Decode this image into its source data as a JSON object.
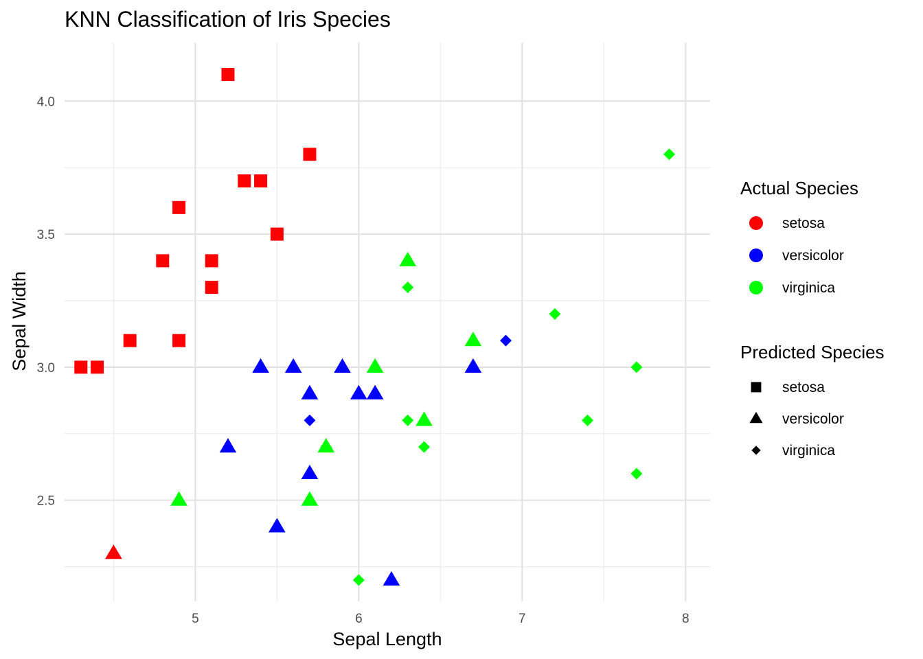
{
  "chart_data": {
    "type": "scatter",
    "title": "KNN Classification of Iris Species",
    "xlabel": "Sepal Length",
    "ylabel": "Sepal Width",
    "xlim": [
      4.2,
      8.15
    ],
    "ylim": [
      2.12,
      4.22
    ],
    "x_ticks": [
      5,
      6,
      7,
      8
    ],
    "x_minor": [
      4.5,
      5.5,
      6.5,
      7.5
    ],
    "y_ticks": [
      2.5,
      3.0,
      3.5,
      4.0
    ],
    "y_tick_labels": [
      "2.5",
      "3.0",
      "3.5",
      "4.0"
    ],
    "y_minor": [
      2.25,
      2.75,
      3.25,
      3.75
    ],
    "grid": true,
    "legend_position": "right",
    "colors": {
      "setosa": "#ff0000",
      "versicolor": "#0000ff",
      "virginica": "#00ff00"
    },
    "shapes": {
      "setosa": "square",
      "versicolor": "triangle",
      "virginica": "diamond"
    },
    "legend": {
      "actual_title": "Actual Species",
      "predicted_title": "Predicted Species",
      "actual_items": [
        "setosa",
        "versicolor",
        "virginica"
      ],
      "predicted_items": [
        "setosa",
        "versicolor",
        "virginica"
      ]
    },
    "points": [
      {
        "x": 5.2,
        "y": 4.1,
        "actual": "setosa",
        "predicted": "setosa"
      },
      {
        "x": 5.7,
        "y": 3.8,
        "actual": "setosa",
        "predicted": "setosa"
      },
      {
        "x": 5.3,
        "y": 3.7,
        "actual": "setosa",
        "predicted": "setosa"
      },
      {
        "x": 5.4,
        "y": 3.7,
        "actual": "setosa",
        "predicted": "setosa"
      },
      {
        "x": 4.9,
        "y": 3.6,
        "actual": "setosa",
        "predicted": "setosa"
      },
      {
        "x": 5.5,
        "y": 3.5,
        "actual": "setosa",
        "predicted": "setosa"
      },
      {
        "x": 4.8,
        "y": 3.4,
        "actual": "setosa",
        "predicted": "setosa"
      },
      {
        "x": 5.1,
        "y": 3.4,
        "actual": "setosa",
        "predicted": "setosa"
      },
      {
        "x": 5.1,
        "y": 3.3,
        "actual": "setosa",
        "predicted": "setosa"
      },
      {
        "x": 4.6,
        "y": 3.1,
        "actual": "setosa",
        "predicted": "setosa"
      },
      {
        "x": 4.9,
        "y": 3.1,
        "actual": "setosa",
        "predicted": "setosa"
      },
      {
        "x": 4.3,
        "y": 3.0,
        "actual": "setosa",
        "predicted": "setosa"
      },
      {
        "x": 4.4,
        "y": 3.0,
        "actual": "setosa",
        "predicted": "setosa"
      },
      {
        "x": 4.5,
        "y": 2.3,
        "actual": "setosa",
        "predicted": "versicolor"
      },
      {
        "x": 5.4,
        "y": 3.0,
        "actual": "versicolor",
        "predicted": "versicolor"
      },
      {
        "x": 5.6,
        "y": 3.0,
        "actual": "versicolor",
        "predicted": "versicolor"
      },
      {
        "x": 5.9,
        "y": 3.0,
        "actual": "versicolor",
        "predicted": "versicolor"
      },
      {
        "x": 6.7,
        "y": 3.0,
        "actual": "versicolor",
        "predicted": "versicolor"
      },
      {
        "x": 5.7,
        "y": 2.9,
        "actual": "versicolor",
        "predicted": "versicolor"
      },
      {
        "x": 6.0,
        "y": 2.9,
        "actual": "versicolor",
        "predicted": "versicolor"
      },
      {
        "x": 6.1,
        "y": 2.9,
        "actual": "versicolor",
        "predicted": "versicolor"
      },
      {
        "x": 5.2,
        "y": 2.7,
        "actual": "versicolor",
        "predicted": "versicolor"
      },
      {
        "x": 5.7,
        "y": 2.6,
        "actual": "versicolor",
        "predicted": "versicolor"
      },
      {
        "x": 5.5,
        "y": 2.4,
        "actual": "versicolor",
        "predicted": "versicolor"
      },
      {
        "x": 6.2,
        "y": 2.2,
        "actual": "versicolor",
        "predicted": "versicolor"
      },
      {
        "x": 6.9,
        "y": 3.1,
        "actual": "versicolor",
        "predicted": "virginica"
      },
      {
        "x": 5.7,
        "y": 2.8,
        "actual": "versicolor",
        "predicted": "virginica"
      },
      {
        "x": 6.3,
        "y": 3.4,
        "actual": "virginica",
        "predicted": "versicolor"
      },
      {
        "x": 6.7,
        "y": 3.1,
        "actual": "virginica",
        "predicted": "versicolor"
      },
      {
        "x": 6.1,
        "y": 3.0,
        "actual": "virginica",
        "predicted": "versicolor"
      },
      {
        "x": 6.4,
        "y": 2.8,
        "actual": "virginica",
        "predicted": "versicolor"
      },
      {
        "x": 5.8,
        "y": 2.7,
        "actual": "virginica",
        "predicted": "versicolor"
      },
      {
        "x": 4.9,
        "y": 2.5,
        "actual": "virginica",
        "predicted": "versicolor"
      },
      {
        "x": 5.7,
        "y": 2.5,
        "actual": "virginica",
        "predicted": "versicolor"
      },
      {
        "x": 7.9,
        "y": 3.8,
        "actual": "virginica",
        "predicted": "virginica"
      },
      {
        "x": 6.3,
        "y": 3.3,
        "actual": "virginica",
        "predicted": "virginica"
      },
      {
        "x": 7.2,
        "y": 3.2,
        "actual": "virginica",
        "predicted": "virginica"
      },
      {
        "x": 7.7,
        "y": 3.0,
        "actual": "virginica",
        "predicted": "virginica"
      },
      {
        "x": 6.3,
        "y": 2.8,
        "actual": "virginica",
        "predicted": "virginica"
      },
      {
        "x": 7.4,
        "y": 2.8,
        "actual": "virginica",
        "predicted": "virginica"
      },
      {
        "x": 5.8,
        "y": 2.7,
        "actual": "virginica",
        "predicted": "virginica"
      },
      {
        "x": 6.4,
        "y": 2.7,
        "actual": "virginica",
        "predicted": "virginica"
      },
      {
        "x": 7.7,
        "y": 2.6,
        "actual": "virginica",
        "predicted": "virginica"
      },
      {
        "x": 6.0,
        "y": 2.2,
        "actual": "virginica",
        "predicted": "virginica"
      }
    ]
  }
}
